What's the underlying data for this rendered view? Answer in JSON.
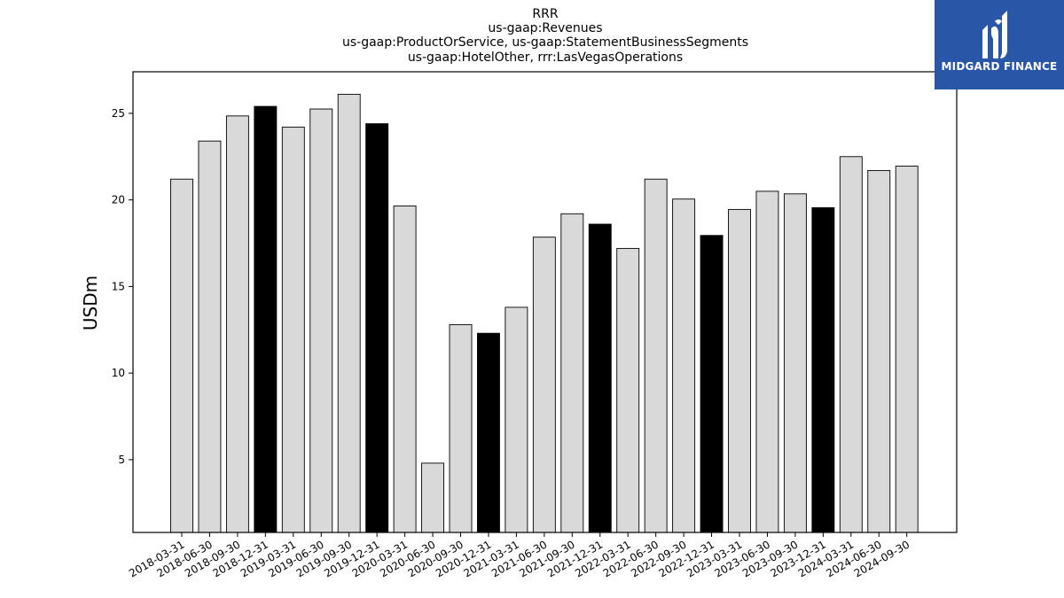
{
  "logo": {
    "text": "MIDGARD FINANCE",
    "colors": {
      "background": "#2a56a8",
      "foreground": "#ffffff"
    }
  },
  "chart_data": {
    "type": "bar",
    "title_lines": [
      "RRR",
      "us-gaap:Revenues",
      "us-gaap:ProductOrService, us-gaap:StatementBusinessSegments",
      "us-gaap:HotelOther, rrr:LasVegasOperations"
    ],
    "ylabel": "USDm",
    "xlabel": "",
    "ylim": [
      0.8,
      27.4
    ],
    "yticks": [
      5,
      10,
      15,
      20,
      25
    ],
    "grid": false,
    "colors": {
      "quarter": "#d9d9d9",
      "year_end": "#000000",
      "edge": "#000000"
    },
    "categories": [
      "2018-03-31",
      "2018-06-30",
      "2018-09-30",
      "2018-12-31",
      "2019-03-31",
      "2019-06-30",
      "2019-09-30",
      "2019-12-31",
      "2020-03-31",
      "2020-06-30",
      "2020-09-30",
      "2020-12-31",
      "2021-03-31",
      "2021-06-30",
      "2021-09-30",
      "2021-12-31",
      "2022-03-31",
      "2022-06-30",
      "2022-09-30",
      "2022-12-31",
      "2023-03-31",
      "2023-06-30",
      "2023-09-30",
      "2023-12-31",
      "2024-03-31",
      "2024-06-30",
      "2024-09-30"
    ],
    "values": [
      21.2,
      23.4,
      24.85,
      25.4,
      24.2,
      25.25,
      26.1,
      24.4,
      19.65,
      4.8,
      12.8,
      12.3,
      13.8,
      17.85,
      19.2,
      18.6,
      17.2,
      21.2,
      20.05,
      17.95,
      19.45,
      20.5,
      20.35,
      19.55,
      22.5,
      21.7,
      21.95
    ],
    "year_end": [
      false,
      false,
      false,
      true,
      false,
      false,
      false,
      true,
      false,
      false,
      false,
      true,
      false,
      false,
      false,
      true,
      false,
      false,
      false,
      true,
      false,
      false,
      false,
      true,
      false,
      false,
      false
    ]
  }
}
